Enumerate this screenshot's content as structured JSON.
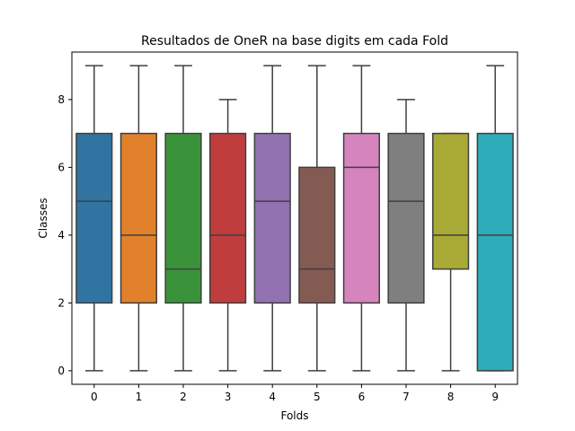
{
  "chart_data": {
    "type": "box",
    "title": "Resultados de OneR na base digits em cada Fold",
    "xlabel": "Folds",
    "ylabel": "Classes",
    "ylim": [
      -0.4,
      9.4
    ],
    "yticks": [
      "0",
      "2",
      "4",
      "6",
      "8"
    ],
    "grid": false,
    "legend": "none",
    "line_color": "#3f3f3f",
    "boxes": [
      {
        "fold": "0",
        "color": "#3274a1",
        "whisker_low": 0,
        "q1": 2,
        "median": 5,
        "q3": 7,
        "whisker_high": 9
      },
      {
        "fold": "1",
        "color": "#e1812c",
        "whisker_low": 0,
        "q1": 2,
        "median": 4,
        "q3": 7,
        "whisker_high": 9
      },
      {
        "fold": "2",
        "color": "#3a923a",
        "whisker_low": 0,
        "q1": 2,
        "median": 3,
        "q3": 7,
        "whisker_high": 9
      },
      {
        "fold": "3",
        "color": "#c03d3e",
        "whisker_low": 0,
        "q1": 2,
        "median": 4,
        "q3": 7,
        "whisker_high": 8
      },
      {
        "fold": "4",
        "color": "#9372b2",
        "whisker_low": 0,
        "q1": 2,
        "median": 5,
        "q3": 7,
        "whisker_high": 9
      },
      {
        "fold": "5",
        "color": "#845b53",
        "whisker_low": 0,
        "q1": 2,
        "median": 3,
        "q3": 6,
        "whisker_high": 9
      },
      {
        "fold": "6",
        "color": "#d684bd",
        "whisker_low": 0,
        "q1": 2,
        "median": 6,
        "q3": 7,
        "whisker_high": 9
      },
      {
        "fold": "7",
        "color": "#7f7f7f",
        "whisker_low": 0,
        "q1": 2,
        "median": 5,
        "q3": 7,
        "whisker_high": 8
      },
      {
        "fold": "8",
        "color": "#a9aa35",
        "whisker_low": 0,
        "q1": 3,
        "median": 4,
        "q3": 7,
        "whisker_high": 7
      },
      {
        "fold": "9",
        "color": "#2eabb8",
        "whisker_low": 0,
        "q1": 0,
        "median": 4,
        "q3": 7,
        "whisker_high": 9
      }
    ]
  }
}
